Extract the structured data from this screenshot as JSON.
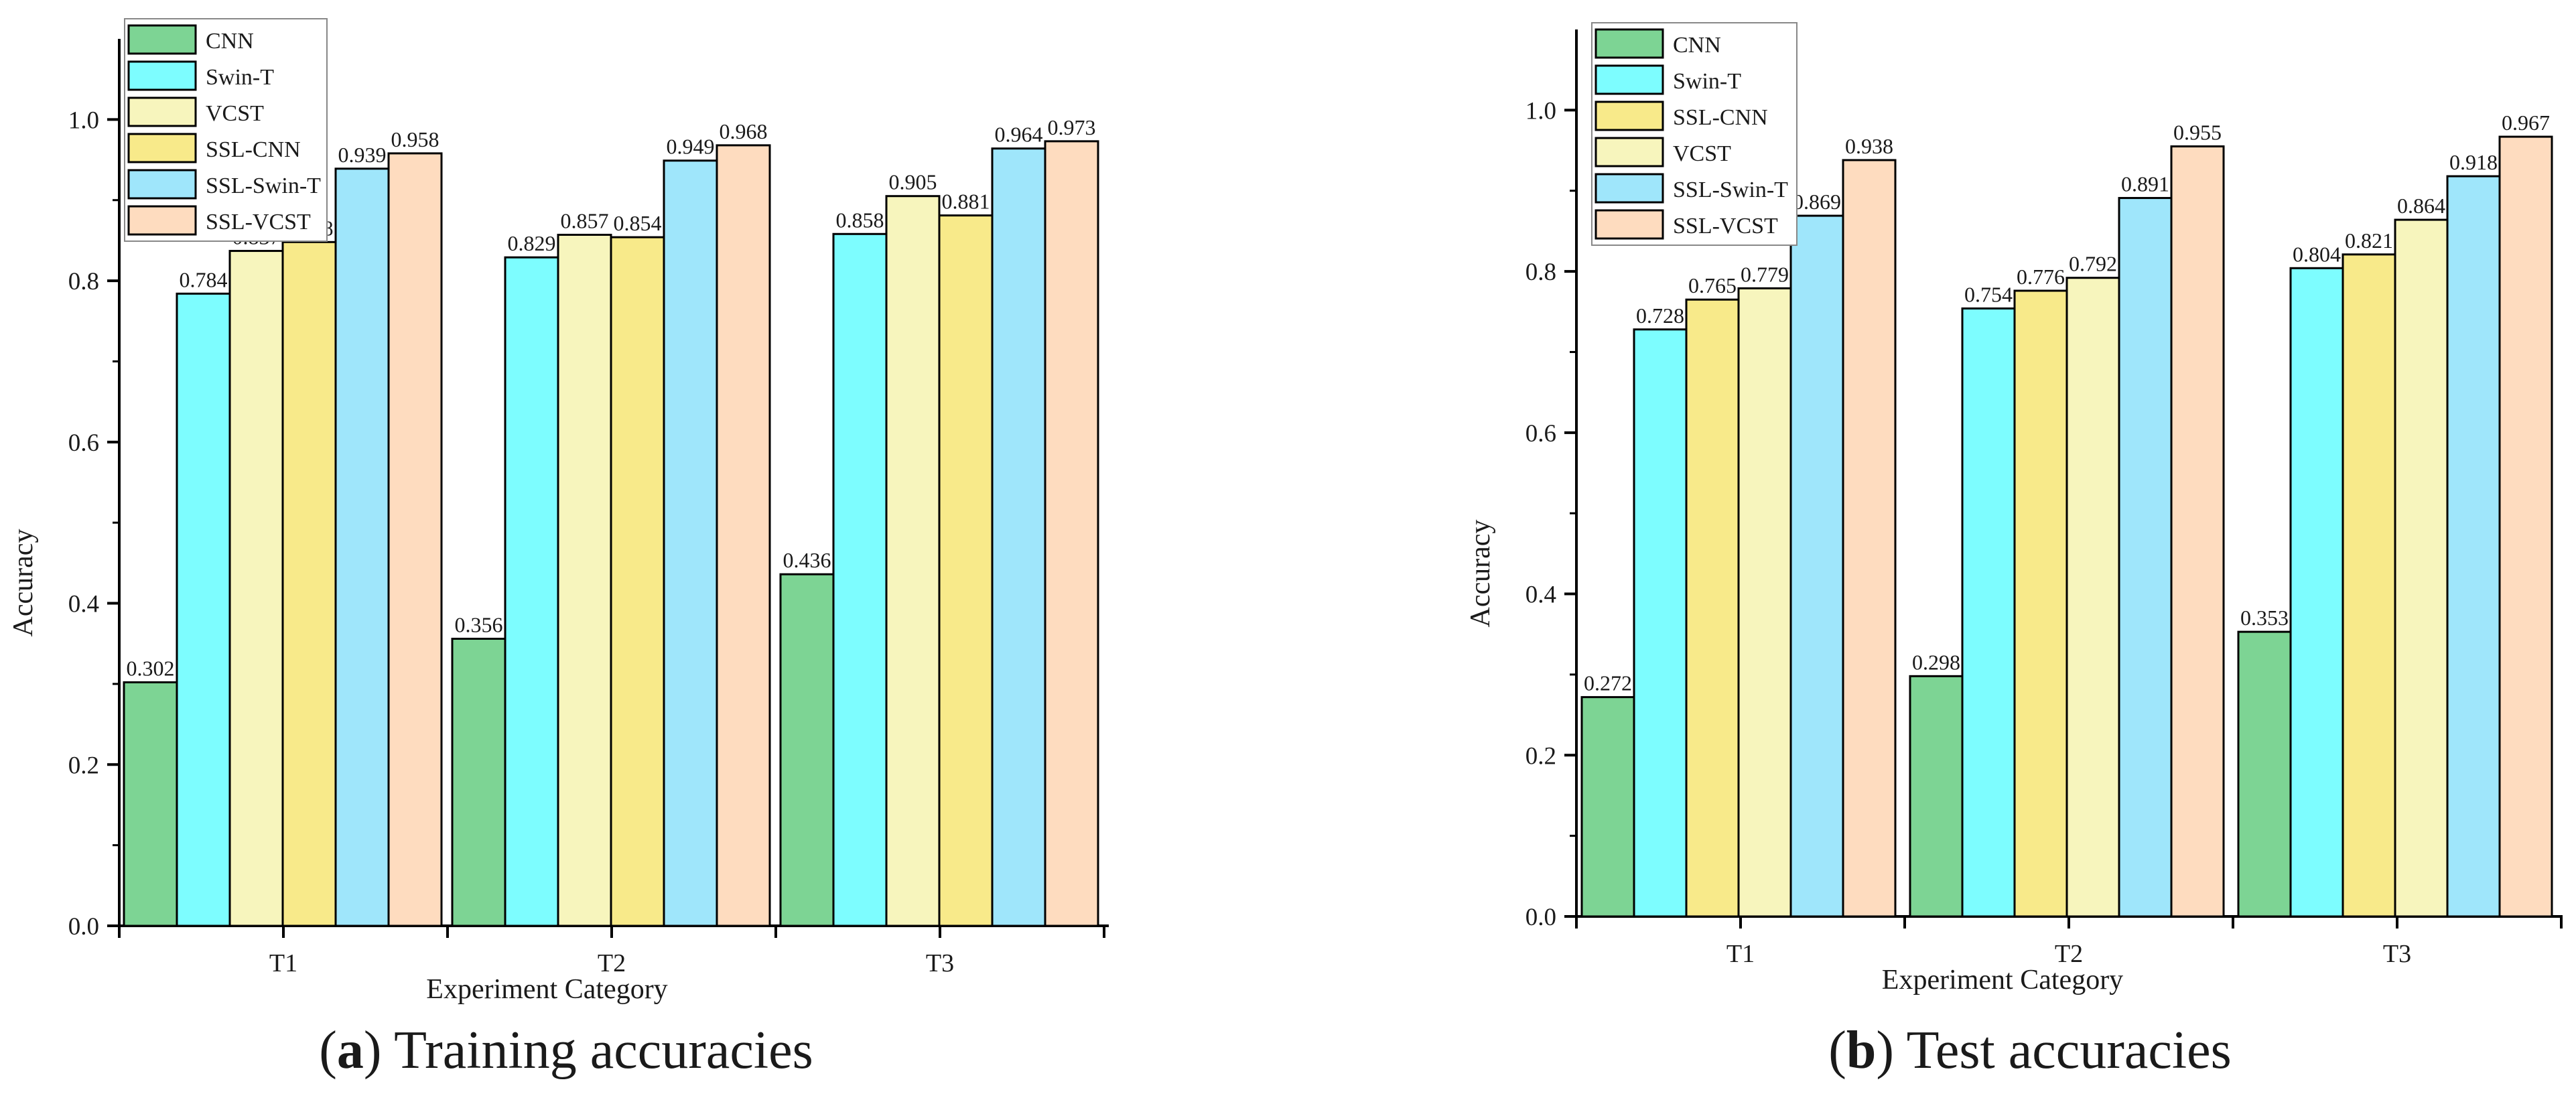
{
  "colors": {
    "CNN": "#7dd494",
    "Swin-T": "#7dfdff",
    "VCST": "#f7f5bd",
    "SSL-CNN": "#f8ea8a",
    "SSL-Swin-T": "#9fe6fb",
    "SSL-VCST": "#fedcbf"
  },
  "chart_data": [
    {
      "type": "bar",
      "caption_letter": "a",
      "caption_text": "Training accuracies",
      "xlabel": "Experiment Category",
      "ylabel": "Accuracy",
      "ylim": [
        0,
        1.1
      ],
      "yticks": [
        "0.0",
        "0.2",
        "0.4",
        "0.6",
        "0.8",
        "1.0"
      ],
      "categories": [
        "T1",
        "T2",
        "T3"
      ],
      "legend_position": "top-left",
      "series": [
        {
          "name": "CNN",
          "values": [
            0.302,
            0.356,
            0.436
          ],
          "labels": [
            "0.302",
            "0.356",
            "0.436"
          ]
        },
        {
          "name": "Swin-T",
          "values": [
            0.784,
            0.829,
            0.858
          ],
          "labels": [
            "0.784",
            "0.829",
            "0.858"
          ]
        },
        {
          "name": "VCST",
          "values": [
            0.837,
            0.857,
            0.905
          ],
          "labels": [
            "0.837",
            "0.857",
            "0.905"
          ]
        },
        {
          "name": "SSL-CNN",
          "values": [
            0.848,
            0.854,
            0.881
          ],
          "labels": [
            "0.848",
            "0.854",
            "0.881"
          ]
        },
        {
          "name": "SSL-Swin-T",
          "values": [
            0.939,
            0.949,
            0.964
          ],
          "labels": [
            "0.939",
            "0.949",
            "0.964"
          ]
        },
        {
          "name": "SSL-VCST",
          "values": [
            0.958,
            0.968,
            0.973
          ],
          "labels": [
            "0.958",
            "0.968",
            "0.973"
          ]
        }
      ]
    },
    {
      "type": "bar",
      "caption_letter": "b",
      "caption_text": "Test accuracies",
      "xlabel": "Experiment Category",
      "ylabel": "Accuracy",
      "ylim": [
        0,
        1.1
      ],
      "yticks": [
        "0.0",
        "0.2",
        "0.4",
        "0.6",
        "0.8",
        "1.0"
      ],
      "categories": [
        "T1",
        "T2",
        "T3"
      ],
      "legend_position": "top-left",
      "series": [
        {
          "name": "CNN",
          "values": [
            0.272,
            0.298,
            0.353
          ],
          "labels": [
            "0.272",
            "0.298",
            "0.353"
          ]
        },
        {
          "name": "Swin-T",
          "values": [
            0.728,
            0.754,
            0.804
          ],
          "labels": [
            "0.728",
            "0.754",
            "0.804"
          ]
        },
        {
          "name": "SSL-CNN",
          "values": [
            0.765,
            0.776,
            0.821
          ],
          "labels": [
            "0.765",
            "0.776",
            "0.821"
          ]
        },
        {
          "name": "VCST",
          "values": [
            0.779,
            0.792,
            0.864
          ],
          "labels": [
            "0.779",
            "0.792",
            "0.864"
          ]
        },
        {
          "name": "SSL-Swin-T",
          "values": [
            0.869,
            0.891,
            0.918
          ],
          "labels": [
            "0.869",
            "0.891",
            "0.918"
          ]
        },
        {
          "name": "SSL-VCST",
          "values": [
            0.938,
            0.955,
            0.967
          ],
          "labels": [
            "0.938",
            "0.955",
            "0.967"
          ]
        }
      ]
    }
  ]
}
